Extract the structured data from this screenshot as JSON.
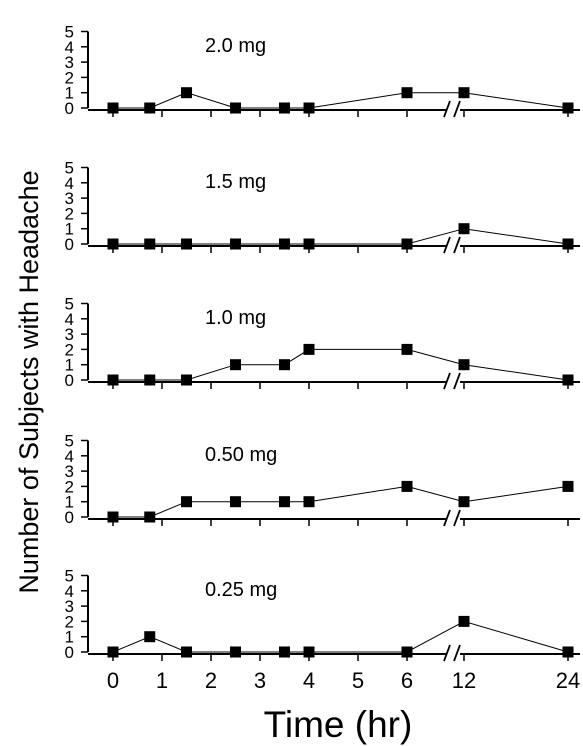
{
  "chart_data": {
    "type": "line",
    "ylabel": "Number of Subjects with Headache",
    "xlabel": "Time (hr)",
    "x_ticks": [
      "0",
      "1",
      "2",
      "3",
      "4",
      "5",
      "6",
      "12",
      "24"
    ],
    "y_ticks": [
      "0",
      "1",
      "2",
      "3",
      "4",
      "5"
    ],
    "ylim": [
      0,
      5
    ],
    "axis_break_between": [
      6,
      12
    ],
    "x": [
      0,
      0.75,
      1.5,
      2.5,
      3.5,
      4,
      6,
      12,
      24
    ],
    "panels": [
      {
        "name": "2.0 mg",
        "values": [
          0,
          0,
          1,
          0,
          0,
          0,
          1,
          1,
          0
        ]
      },
      {
        "name": "1.5 mg",
        "values": [
          0,
          0,
          0,
          0,
          0,
          0,
          0,
          1,
          0
        ]
      },
      {
        "name": "1.0 mg",
        "values": [
          0,
          0,
          0,
          1,
          1,
          2,
          2,
          1,
          0
        ]
      },
      {
        "name": "0.50 mg",
        "values": [
          0,
          0,
          1,
          1,
          1,
          1,
          2,
          1,
          2
        ]
      },
      {
        "name": "0.25 mg",
        "values": [
          0,
          1,
          0,
          0,
          0,
          0,
          0,
          2,
          0
        ]
      }
    ]
  }
}
